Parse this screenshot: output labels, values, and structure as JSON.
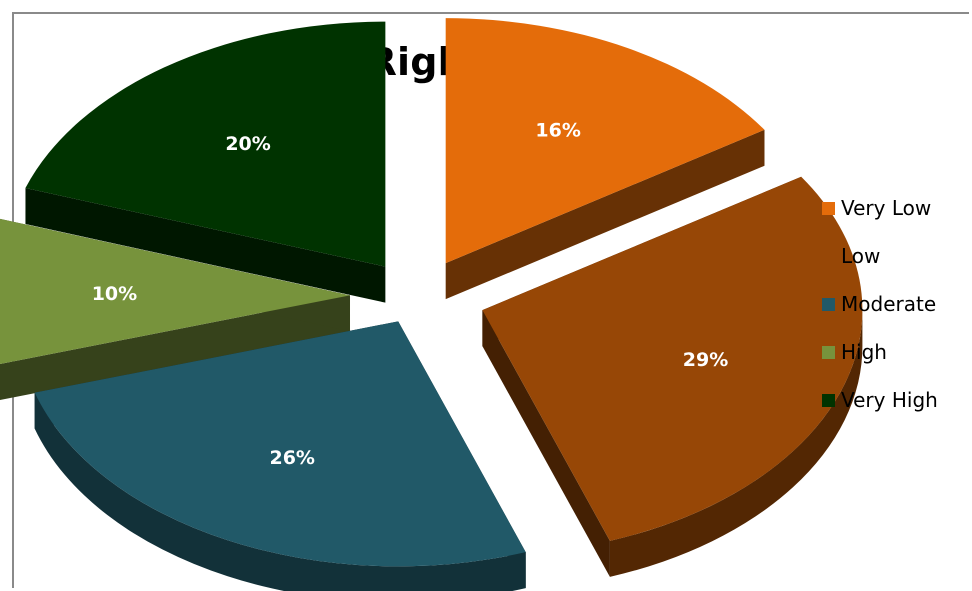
{
  "chart_data": {
    "type": "pie",
    "title": "Right Bank",
    "categories": [
      "Very Low",
      "Low",
      "Moderate",
      "High",
      "Very High"
    ],
    "values": [
      16,
      29,
      26,
      10,
      20
    ],
    "labels": [
      "16%",
      "29%",
      "26%",
      "10%",
      "20%"
    ],
    "colors": [
      "#E46C0A",
      "#974706",
      "#215968",
      "#77933C",
      "#003300"
    ],
    "legend_position": "right",
    "style": "3d-exploded"
  }
}
